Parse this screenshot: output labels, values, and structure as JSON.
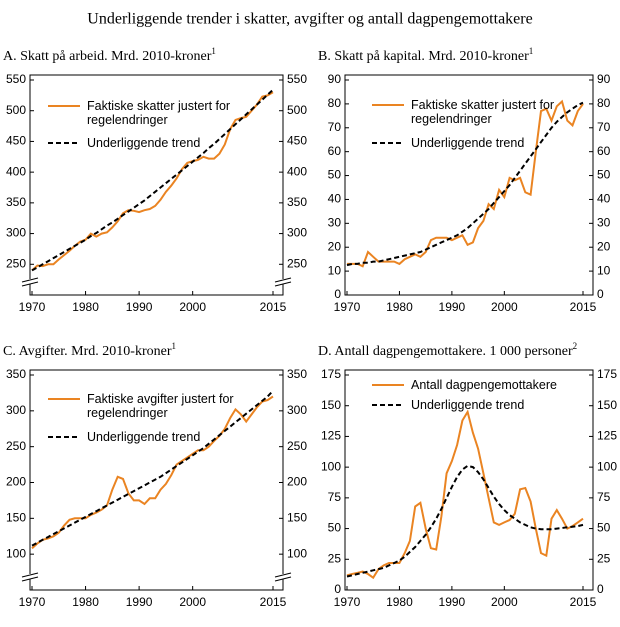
{
  "title": "Underliggende trender i skatter, avgifter og antall dagpengemottakere",
  "chart_data": [
    {
      "type": "line",
      "title": "A.  Skatt på arbeid. Mrd. 2010-kroner",
      "title_note": "1",
      "x": [
        1970,
        1971,
        1972,
        1973,
        1974,
        1975,
        1976,
        1977,
        1978,
        1979,
        1980,
        1981,
        1982,
        1983,
        1984,
        1985,
        1986,
        1987,
        1988,
        1989,
        1990,
        1991,
        1992,
        1993,
        1994,
        1995,
        1996,
        1997,
        1998,
        1999,
        2000,
        2001,
        2002,
        2003,
        2004,
        2005,
        2006,
        2007,
        2008,
        2009,
        2010,
        2011,
        2012,
        2013,
        2014,
        2015
      ],
      "series": [
        {
          "name": "Faktiske skatter justert for regelendringer",
          "color": "#ea8422",
          "dash": false,
          "values": [
            240,
            248,
            247,
            250,
            250,
            258,
            265,
            272,
            280,
            287,
            290,
            300,
            295,
            300,
            302,
            310,
            320,
            333,
            338,
            337,
            335,
            338,
            340,
            345,
            355,
            368,
            378,
            390,
            405,
            415,
            418,
            420,
            425,
            422,
            422,
            430,
            445,
            470,
            485,
            488,
            490,
            500,
            510,
            523,
            525,
            530
          ]
        },
        {
          "name": "Underliggende trend",
          "color": "#000000",
          "dash": true,
          "values": [
            240,
            245,
            250,
            255,
            260,
            265,
            270,
            275,
            280,
            285,
            290,
            296,
            301,
            307,
            313,
            318,
            324,
            330,
            336,
            342,
            348,
            354,
            361,
            368,
            375,
            382,
            389,
            396,
            403,
            410,
            417,
            424,
            431,
            439,
            446,
            454,
            462,
            470,
            478,
            486,
            494,
            502,
            510,
            518,
            526,
            534
          ]
        }
      ],
      "xlim": [
        1970,
        2015
      ],
      "xticks": [
        1970,
        1980,
        1990,
        2000,
        2015
      ],
      "ylim": [
        200,
        550
      ],
      "yticks": [
        250,
        300,
        350,
        400,
        450,
        500,
        550
      ],
      "axis_break": true
    },
    {
      "type": "line",
      "title": "B.  Skatt på kapital. Mrd. 2010-kroner",
      "title_note": "1",
      "x": [
        1970,
        1971,
        1972,
        1973,
        1974,
        1975,
        1976,
        1977,
        1978,
        1979,
        1980,
        1981,
        1982,
        1983,
        1984,
        1985,
        1986,
        1987,
        1988,
        1989,
        1990,
        1991,
        1992,
        1993,
        1994,
        1995,
        1996,
        1997,
        1998,
        1999,
        2000,
        2001,
        2002,
        2003,
        2004,
        2005,
        2006,
        2007,
        2008,
        2009,
        2010,
        2011,
        2012,
        2013,
        2014,
        2015
      ],
      "series": [
        {
          "name": "Faktiske skatter justert for regelendringer",
          "color": "#ea8422",
          "dash": false,
          "values": [
            13,
            13,
            13,
            12,
            18,
            16,
            14,
            14,
            14,
            14,
            13,
            15,
            16,
            17,
            16,
            18,
            23,
            24,
            24,
            24,
            23,
            24,
            25,
            21,
            22,
            28,
            31,
            38,
            36,
            44,
            41,
            49,
            48,
            49,
            43,
            42,
            60,
            77,
            78,
            73,
            79,
            81,
            73,
            71,
            77,
            80
          ]
        },
        {
          "name": "Underliggende trend",
          "color": "#000000",
          "dash": true,
          "values": [
            12.5,
            13,
            13,
            13.5,
            13.5,
            14,
            14,
            14.5,
            15,
            15.5,
            16,
            16.5,
            17,
            17.5,
            18,
            19,
            20,
            21,
            22,
            23,
            24,
            25,
            26.5,
            28,
            30,
            32,
            34,
            36,
            38.5,
            41,
            43.5,
            46,
            49,
            52,
            55,
            58,
            61,
            64,
            67,
            70,
            72.5,
            74.5,
            76.5,
            78,
            79.5,
            80.5
          ]
        }
      ],
      "xlim": [
        1970,
        2015
      ],
      "xticks": [
        1970,
        1980,
        1990,
        2000,
        2015
      ],
      "ylim": [
        0,
        90
      ],
      "yticks": [
        0,
        10,
        20,
        30,
        40,
        50,
        60,
        70,
        80,
        90
      ],
      "axis_break": false
    },
    {
      "type": "line",
      "title": "C.  Avgifter. Mrd. 2010-kroner",
      "title_note": "1",
      "x": [
        1970,
        1971,
        1972,
        1973,
        1974,
        1975,
        1976,
        1977,
        1978,
        1979,
        1980,
        1981,
        1982,
        1983,
        1984,
        1985,
        1986,
        1987,
        1988,
        1989,
        1990,
        1991,
        1992,
        1993,
        1994,
        1995,
        1996,
        1997,
        1998,
        1999,
        2000,
        2001,
        2002,
        2003,
        2004,
        2005,
        2006,
        2007,
        2008,
        2009,
        2010,
        2011,
        2012,
        2013,
        2014,
        2015
      ],
      "series": [
        {
          "name": "Faktiske avgifter justert for regelendringer",
          "color": "#ea8422",
          "dash": false,
          "values": [
            108,
            115,
            120,
            122,
            125,
            130,
            140,
            148,
            150,
            150,
            150,
            155,
            158,
            162,
            168,
            190,
            208,
            205,
            185,
            175,
            175,
            170,
            178,
            178,
            190,
            198,
            210,
            225,
            230,
            235,
            240,
            245,
            245,
            250,
            258,
            265,
            275,
            290,
            302,
            295,
            285,
            295,
            305,
            313,
            315,
            320
          ]
        },
        {
          "name": "Underliggende trend",
          "color": "#000000",
          "dash": true,
          "values": [
            112,
            116,
            120,
            124,
            128,
            132,
            136,
            140,
            144,
            148,
            152,
            156,
            160,
            164,
            168,
            172,
            176,
            180,
            184,
            188,
            192,
            196,
            200,
            204,
            208,
            213,
            218,
            223,
            228,
            233,
            238,
            243,
            248,
            254,
            260,
            266,
            272,
            278,
            284,
            290,
            296,
            302,
            308,
            314,
            320,
            328
          ]
        }
      ],
      "xlim": [
        1970,
        2015
      ],
      "xticks": [
        1970,
        1980,
        1990,
        2000,
        2015
      ],
      "ylim": [
        50,
        350
      ],
      "yticks": [
        100,
        150,
        200,
        250,
        300,
        350
      ],
      "axis_break": true
    },
    {
      "type": "line",
      "title": "D.  Antall dagpengemottakere. 1 000 personer",
      "title_note": "2",
      "x": [
        1970,
        1971,
        1972,
        1973,
        1974,
        1975,
        1976,
        1977,
        1978,
        1979,
        1980,
        1981,
        1982,
        1983,
        1984,
        1985,
        1986,
        1987,
        1988,
        1989,
        1990,
        1991,
        1992,
        1993,
        1994,
        1995,
        1996,
        1997,
        1998,
        1999,
        2000,
        2001,
        2002,
        2003,
        2004,
        2005,
        2006,
        2007,
        2008,
        2009,
        2010,
        2011,
        2012,
        2013,
        2014,
        2015
      ],
      "series": [
        {
          "name": "Antall dagpengemottakere",
          "color": "#ea8422",
          "dash": false,
          "values": [
            12,
            13,
            14,
            15,
            13,
            10,
            17,
            20,
            22,
            22,
            22,
            30,
            40,
            68,
            71,
            50,
            34,
            33,
            60,
            95,
            105,
            118,
            138,
            145,
            128,
            115,
            95,
            75,
            55,
            53,
            55,
            57,
            62,
            82,
            83,
            72,
            50,
            30,
            28,
            58,
            65,
            58,
            50,
            52,
            55,
            58
          ]
        },
        {
          "name": "Underliggende trend",
          "color": "#000000",
          "dash": true,
          "values": [
            11,
            12,
            13,
            14,
            15,
            16,
            17,
            18,
            20,
            22,
            24,
            27,
            31,
            35,
            40,
            45,
            51,
            58,
            66,
            75,
            84,
            92,
            98,
            101,
            100,
            96,
            90,
            83,
            76,
            70,
            65,
            61,
            58,
            55,
            53,
            51,
            50,
            49.5,
            49.5,
            49.5,
            50,
            50.5,
            51,
            51.5,
            52,
            53
          ]
        }
      ],
      "xlim": [
        1970,
        2015
      ],
      "xticks": [
        1970,
        1980,
        1990,
        2000,
        2015
      ],
      "ylim": [
        0,
        175
      ],
      "yticks": [
        0,
        25,
        50,
        75,
        100,
        125,
        150,
        175
      ],
      "axis_break": false
    }
  ]
}
